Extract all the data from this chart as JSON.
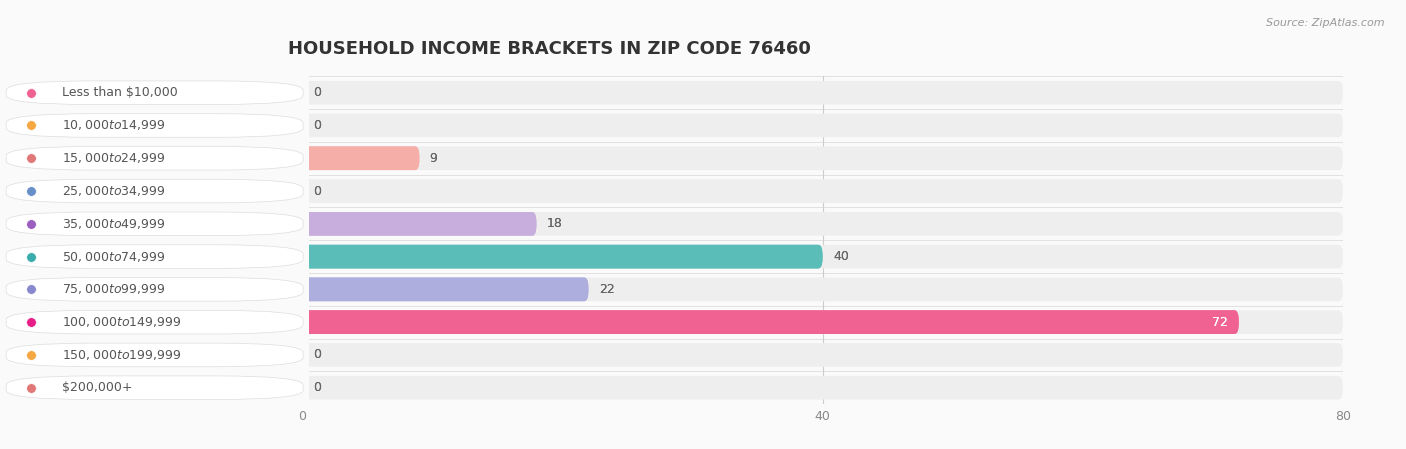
{
  "title": "HOUSEHOLD INCOME BRACKETS IN ZIP CODE 76460",
  "source": "Source: ZipAtlas.com",
  "categories": [
    "Less than $10,000",
    "$10,000 to $14,999",
    "$15,000 to $24,999",
    "$25,000 to $34,999",
    "$35,000 to $49,999",
    "$50,000 to $74,999",
    "$75,000 to $99,999",
    "$100,000 to $149,999",
    "$150,000 to $199,999",
    "$200,000+"
  ],
  "values": [
    0,
    0,
    9,
    0,
    18,
    40,
    22,
    72,
    0,
    0
  ],
  "bar_colors": [
    "#F9A8C9",
    "#FDCF96",
    "#F5AFA8",
    "#A8C0DE",
    "#C8AEDD",
    "#5BBDB8",
    "#ADADDE",
    "#F06292",
    "#FDCF96",
    "#F5B8B0"
  ],
  "dot_colors": [
    "#F06292",
    "#F5A742",
    "#E07878",
    "#6890C8",
    "#9B5EBF",
    "#3AACAC",
    "#8888CC",
    "#E81E88",
    "#F5A742",
    "#E07878"
  ],
  "row_bg_color": "#efefef",
  "fig_bg_color": "#fafafa",
  "xlim": [
    0,
    80
  ],
  "xticks": [
    0,
    40,
    80
  ],
  "value_fontsize": 9,
  "label_fontsize": 9,
  "title_fontsize": 13
}
